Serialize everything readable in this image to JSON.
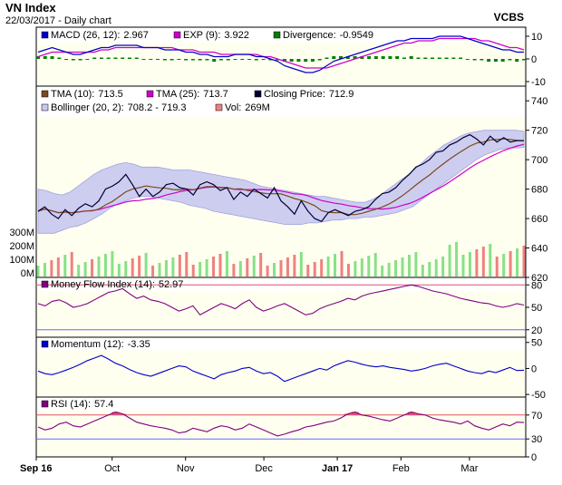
{
  "header": {
    "title": "VN Index",
    "subtitle": "22/03/2017 - Daily chart",
    "broker": "VCBS"
  },
  "colors": {
    "panel_bg": "#fffff0",
    "macd": "#0000cc",
    "exp": "#cc00cc",
    "divergence": "#008000",
    "tma10": "#7a4a1e",
    "tma25": "#cc00cc",
    "close": "#000033",
    "bollinger_fill": "#c8c8f0",
    "vol_up": "#88e088",
    "vol_down": "#f08080",
    "mfi": "#800080",
    "momentum": "#0000cc",
    "rsi": "#800080",
    "overbought_fill": "#e05070",
    "ref_line_red": "#e05070",
    "ref_line_blue": "#6666ff"
  },
  "chart_data": [
    {
      "type": "line",
      "title": "MACD (26, 12)",
      "series": [
        {
          "name": "MACD (26, 12)",
          "latest_label": "2.967",
          "color_key": "macd",
          "values": [
            3,
            4,
            5,
            4,
            3,
            2,
            2,
            3,
            4,
            5,
            5,
            6,
            6,
            6,
            6,
            5,
            5,
            5,
            4,
            4,
            4,
            3,
            3,
            2,
            2,
            1,
            1,
            1,
            2,
            2,
            2,
            1,
            1,
            0,
            -1,
            -3,
            -4,
            -5,
            -6,
            -6,
            -5,
            -3,
            -1,
            0,
            1,
            2,
            3,
            4,
            5,
            6,
            7,
            8,
            8,
            9,
            9,
            9,
            9,
            10,
            10,
            10,
            10,
            9,
            8,
            7,
            6,
            5,
            4,
            4,
            3,
            3
          ]
        },
        {
          "name": "EXP (9)",
          "latest_label": "3.922",
          "color_key": "exp",
          "values": [
            1,
            2,
            3,
            3,
            3,
            3,
            3,
            3,
            3,
            4,
            4,
            5,
            5,
            5,
            5,
            5,
            5,
            5,
            5,
            5,
            4,
            4,
            4,
            3,
            3,
            3,
            2,
            2,
            2,
            2,
            2,
            2,
            1,
            1,
            0,
            -1,
            -2,
            -3,
            -4,
            -4,
            -4,
            -4,
            -3,
            -2,
            -1,
            0,
            1,
            2,
            3,
            4,
            5,
            6,
            7,
            7,
            8,
            8,
            8,
            9,
            9,
            9,
            9,
            9,
            9,
            8,
            8,
            7,
            6,
            5,
            5,
            4
          ]
        },
        {
          "name": "Divergence",
          "latest_label": "-0.9549",
          "color_key": "divergence",
          "style": "histogram"
        }
      ],
      "y_ticks": [
        10,
        0,
        -10
      ],
      "ylim": [
        -12,
        14
      ]
    },
    {
      "type": "line",
      "title": "Price",
      "series": [
        {
          "name": "TMA (10)",
          "latest_label": "713.5",
          "color_key": "tma10"
        },
        {
          "name": "TMA (25)",
          "latest_label": "713.7",
          "color_key": "tma25"
        },
        {
          "name": "Closing Price",
          "latest_label": "712.9",
          "color_key": "close",
          "values": [
            665,
            668,
            663,
            660,
            666,
            662,
            667,
            670,
            668,
            672,
            680,
            682,
            685,
            690,
            683,
            675,
            680,
            675,
            678,
            683,
            684,
            681,
            680,
            676,
            683,
            685,
            683,
            679,
            681,
            673,
            678,
            675,
            680,
            677,
            674,
            681,
            672,
            668,
            663,
            672,
            665,
            660,
            658,
            664,
            666,
            664,
            662,
            665,
            666,
            668,
            673,
            677,
            678,
            681,
            686,
            690,
            695,
            697,
            700,
            705,
            706,
            710,
            712,
            715,
            717,
            714,
            710,
            716,
            712,
            715,
            712,
            713,
            712.9
          ]
        },
        {
          "name": "Bollinger (20, 2)",
          "latest_label": "708.2 - 719.3",
          "color_key": "bollinger_fill",
          "style": "band",
          "upper": [
            680,
            679,
            677,
            676,
            678,
            682,
            686,
            690,
            693,
            695,
            697,
            698,
            697,
            695,
            695,
            695,
            694,
            693,
            693,
            693,
            692,
            691,
            690,
            689,
            688,
            687,
            686,
            684,
            682,
            681,
            680,
            679,
            678,
            677,
            676,
            675,
            675,
            674,
            673,
            672,
            671,
            671,
            673,
            676,
            680,
            684,
            688,
            692,
            697,
            702,
            706,
            710,
            713,
            716,
            718,
            719,
            720,
            720,
            720,
            720,
            720,
            719.3
          ],
          "lower": [
            650,
            650,
            650,
            652,
            654,
            655,
            657,
            660,
            663,
            667,
            670,
            672,
            674,
            675,
            675,
            674,
            673,
            672,
            671,
            669,
            668,
            667,
            665,
            664,
            663,
            662,
            661,
            660,
            659,
            658,
            657,
            656,
            656,
            656,
            657,
            657,
            658,
            659,
            659,
            660,
            660,
            661,
            661,
            662,
            663,
            664,
            666,
            668,
            672,
            676,
            680,
            684,
            688,
            692,
            696,
            700,
            703,
            705,
            707,
            708,
            708,
            708.2
          ]
        },
        {
          "name": "Vol",
          "latest_label": "269M",
          "color_key": "vol_up",
          "style": "volume"
        }
      ],
      "y_ticks": [
        740,
        720,
        700,
        680,
        660,
        640,
        620
      ],
      "volume_ticks": [
        "300M",
        "200M",
        "100M",
        "0M"
      ],
      "ylim": [
        620,
        750
      ]
    },
    {
      "type": "line",
      "title": "Money Flow Index (14)",
      "series": [
        {
          "name": "Money Flow Index (14)",
          "latest_label": "52.97",
          "color_key": "mfi",
          "values": [
            55,
            52,
            58,
            60,
            56,
            50,
            52,
            55,
            60,
            65,
            70,
            72,
            75,
            68,
            62,
            65,
            60,
            58,
            55,
            50,
            45,
            48,
            52,
            40,
            45,
            50,
            55,
            52,
            48,
            55,
            60,
            50,
            45,
            48,
            52,
            55,
            50,
            45,
            40,
            42,
            48,
            52,
            55,
            58,
            62,
            60,
            65,
            68,
            70,
            72,
            74,
            76,
            78,
            80,
            78,
            75,
            72,
            70,
            68,
            65,
            62,
            60,
            58,
            56,
            55,
            52,
            50,
            52,
            55,
            53
          ]
        }
      ],
      "y_ticks": [
        80,
        50,
        20
      ],
      "ref_lines": [
        80,
        20
      ],
      "ylim": [
        10,
        90
      ]
    },
    {
      "type": "line",
      "title": "Momentum (12)",
      "series": [
        {
          "name": "Momentum (12)",
          "latest_label": "-3.35",
          "color_key": "momentum",
          "values": [
            -5,
            -10,
            -12,
            -8,
            -3,
            2,
            8,
            15,
            20,
            25,
            18,
            10,
            5,
            -2,
            -8,
            -12,
            -15,
            -10,
            -5,
            0,
            5,
            3,
            -5,
            -10,
            -15,
            -20,
            -12,
            -8,
            -5,
            0,
            2,
            -5,
            -10,
            -8,
            -15,
            -25,
            -20,
            -15,
            -10,
            -5,
            0,
            -3,
            5,
            10,
            15,
            12,
            8,
            5,
            3,
            5,
            2,
            0,
            -2,
            -5,
            -3,
            0,
            5,
            8,
            10,
            5,
            0,
            -5,
            -8,
            -10,
            -5,
            -8,
            -3,
            2,
            -4,
            -3.35
          ]
        }
      ],
      "y_ticks": [
        50,
        0,
        -50
      ],
      "ylim": [
        -55,
        60
      ]
    },
    {
      "type": "line",
      "title": "RSI (14)",
      "series": [
        {
          "name": "RSI (14)",
          "latest_label": "57.4",
          "color_key": "rsi",
          "values": [
            50,
            45,
            48,
            55,
            58,
            52,
            50,
            55,
            60,
            65,
            70,
            75,
            72,
            65,
            58,
            55,
            52,
            50,
            48,
            45,
            40,
            42,
            48,
            45,
            42,
            48,
            52,
            50,
            45,
            48,
            55,
            50,
            45,
            40,
            35,
            38,
            42,
            45,
            50,
            52,
            55,
            58,
            60,
            65,
            72,
            75,
            70,
            68,
            65,
            62,
            60,
            65,
            70,
            75,
            72,
            70,
            65,
            62,
            60,
            58,
            55,
            60,
            52,
            48,
            45,
            50,
            55,
            52,
            58,
            57.4
          ]
        }
      ],
      "y_ticks": [
        70,
        30,
        0
      ],
      "ref_lines": [
        70,
        30
      ],
      "ylim": [
        0,
        100
      ]
    }
  ],
  "x_axis": {
    "labels": [
      {
        "text": "Sep 16",
        "frac": 0.0,
        "bold": true
      },
      {
        "text": "Oct",
        "frac": 0.155
      },
      {
        "text": "Nov",
        "frac": 0.305
      },
      {
        "text": "Dec",
        "frac": 0.465
      },
      {
        "text": "Jan 17",
        "frac": 0.615,
        "bold": true
      },
      {
        "text": "Feb",
        "frac": 0.745
      },
      {
        "text": "Mar",
        "frac": 0.885
      }
    ]
  }
}
